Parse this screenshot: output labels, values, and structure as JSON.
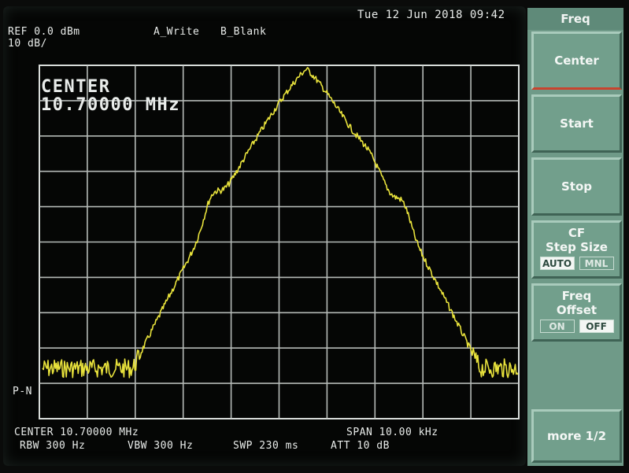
{
  "screen": {
    "timestamp": "Tue 12 Jun 2018 09:42",
    "ref_level": "REF 0.0 dBm",
    "scale": "10 dB/",
    "trace_a": "A_Write",
    "trace_b": "B_Blank",
    "marker_label": "P-N",
    "active_function_title": "CENTER",
    "active_function_value": "10.70000 MHz",
    "bottom": {
      "center": "CENTER 10.70000 MHz",
      "span": "SPAN 10.00 kHz",
      "rbw": "RBW 300 Hz",
      "vbw": "VBW 300 Hz",
      "swp": "SWP 230 ms",
      "att": "ATT 10 dB"
    },
    "trace_color": "#e8e23c"
  },
  "softkeys": {
    "menu_title": "Freq",
    "center": "Center",
    "start": "Start",
    "stop": "Stop",
    "cf_step": {
      "line1": "CF",
      "line2": "Step Size",
      "opt_a": "AUTO",
      "opt_b": "MNL",
      "selected": "AUTO"
    },
    "freq_offset": {
      "line1": "Freq",
      "line2": "Offset",
      "opt_a": "ON",
      "opt_b": "OFF",
      "selected": "OFF"
    },
    "more": "more 1/2"
  }
}
